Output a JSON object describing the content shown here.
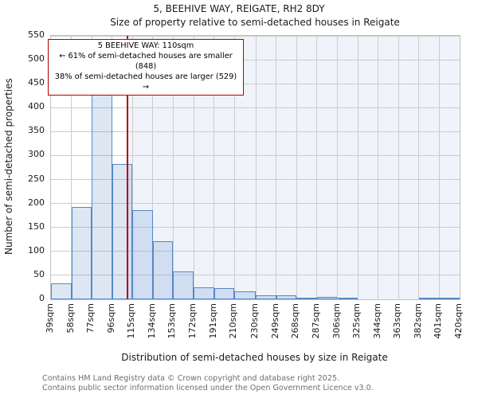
{
  "title": "5, BEEHIVE WAY, REIGATE, RH2 8DY",
  "subtitle": "Size of property relative to semi-detached houses in Reigate",
  "annotation": {
    "line1": "5 BEEHIVE WAY: 110sqm",
    "line2": "← 61% of semi-detached houses are smaller (848)",
    "line3": "38% of semi-detached houses are larger (529) →"
  },
  "footer": {
    "line1": "Contains HM Land Registry data © Crown copyright and database right 2025.",
    "line2": "Contains public sector information licensed under the Open Government Licence v3.0."
  },
  "chart_data": {
    "type": "bar",
    "title": "5, BEEHIVE WAY, REIGATE, RH2 8DY — Size of property relative to semi-detached houses in Reigate",
    "xlabel": "Distribution of semi-detached houses by size in Reigate",
    "ylabel": "Number of semi-detached properties",
    "bin_edges_sqm": [
      39,
      58,
      77,
      96,
      115,
      134,
      153,
      172,
      191,
      210,
      230,
      249,
      268,
      287,
      306,
      325,
      344,
      363,
      382,
      401,
      420
    ],
    "x_tick_labels": [
      "39sqm",
      "58sqm",
      "77sqm",
      "96sqm",
      "115sqm",
      "134sqm",
      "153sqm",
      "172sqm",
      "191sqm",
      "210sqm",
      "230sqm",
      "249sqm",
      "268sqm",
      "287sqm",
      "306sqm",
      "325sqm",
      "344sqm",
      "363sqm",
      "382sqm",
      "401sqm",
      "420sqm"
    ],
    "values": [
      33,
      192,
      429,
      283,
      186,
      122,
      59,
      25,
      23,
      16,
      8,
      8,
      4,
      5,
      3,
      0,
      0,
      0,
      2,
      2
    ],
    "y_ticks": [
      0,
      50,
      100,
      150,
      200,
      250,
      300,
      350,
      400,
      450,
      500,
      550
    ],
    "ylim": [
      0,
      550
    ],
    "xlim": [
      39,
      420
    ],
    "grid": true,
    "legend": false,
    "marker": {
      "value_sqm": 110,
      "color": "#b30000"
    },
    "colors": {
      "bar_fill": "rgba(85,136,200,0.2)",
      "bar_edge": "#5588c8",
      "shade": "#f0f3fa",
      "gridline": "#cccccc",
      "frame": "#c0c0c0",
      "footer_text": "#6e6e6e"
    }
  }
}
